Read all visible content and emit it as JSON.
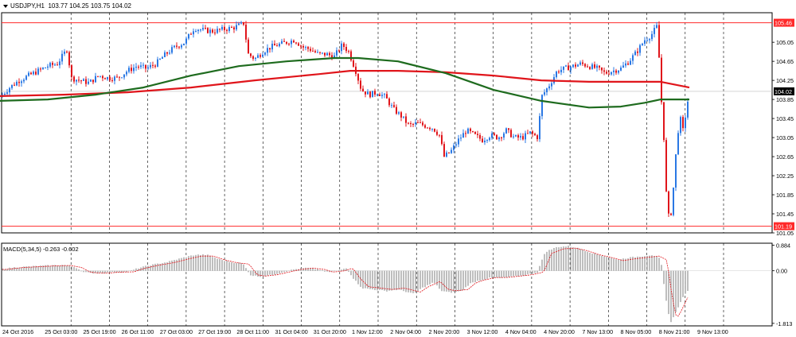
{
  "header": {
    "symbol": "USDJPY,H1",
    "ohlc": "103.77 104.25 103.75 104.02"
  },
  "macd_header": {
    "label": "MACD(5,34,5)",
    "values": "-0.263 -0.602"
  },
  "colors": {
    "bull": "#2a78e4",
    "bear": "#e0151b",
    "ma_red": "#e0151b",
    "ma_green": "#1e6b1e",
    "hline": "#ff2a2a",
    "grid": "#000000",
    "hist": "#9a9a9a",
    "signal": "#e0151b"
  },
  "chart_data": {
    "type": "candlestick",
    "symbol": "USDJPY",
    "timeframe": "H1",
    "ylim": [
      101.05,
      105.67
    ],
    "price_ticks": [
      "105.46",
      "105.05",
      "104.65",
      "104.25",
      "104.02",
      "103.85",
      "103.45",
      "103.05",
      "102.65",
      "102.25",
      "101.85",
      "101.45",
      "101.19",
      "101.05"
    ],
    "highlighted_levels": {
      "upper": 105.46,
      "lower": 101.19,
      "current": 104.02
    },
    "x_labels": [
      "24 Oct 2016",
      "25 Oct 03:00",
      "25 Oct 19:00",
      "26 Oct 11:00",
      "27 Oct 03:00",
      "27 Oct 19:00",
      "28 Oct 11:00",
      "31 Oct 04:00",
      "31 Oct 20:00",
      "1 Nov 12:00",
      "2 Nov 04:00",
      "2 Nov 20:00",
      "3 Nov 12:00",
      "4 Nov 04:00",
      "4 Nov 20:00",
      "7 Nov 13:00",
      "8 Nov 05:00",
      "8 Nov 21:00",
      "9 Nov 13:00"
    ],
    "close_path": [
      [
        0,
        103.9
      ],
      [
        12,
        104.1
      ],
      [
        24,
        104.25
      ],
      [
        36,
        104.35
      ],
      [
        48,
        104.45
      ],
      [
        60,
        104.55
      ],
      [
        72,
        104.6
      ],
      [
        84,
        104.9
      ],
      [
        90,
        104.3
      ],
      [
        100,
        104.25
      ],
      [
        112,
        104.2
      ],
      [
        124,
        104.35
      ],
      [
        136,
        104.3
      ],
      [
        148,
        104.3
      ],
      [
        160,
        104.45
      ],
      [
        172,
        104.55
      ],
      [
        184,
        104.5
      ],
      [
        196,
        104.6
      ],
      [
        208,
        104.8
      ],
      [
        220,
        104.95
      ],
      [
        232,
        105.05
      ],
      [
        244,
        105.35
      ],
      [
        256,
        105.3
      ],
      [
        268,
        105.28
      ],
      [
        280,
        105.32
      ],
      [
        292,
        105.35
      ],
      [
        300,
        105.4
      ],
      [
        306,
        105.45
      ],
      [
        312,
        104.8
      ],
      [
        320,
        104.7
      ],
      [
        330,
        104.85
      ],
      [
        340,
        104.95
      ],
      [
        350,
        105.0
      ],
      [
        360,
        105.05
      ],
      [
        370,
        105.1
      ],
      [
        380,
        104.95
      ],
      [
        390,
        104.9
      ],
      [
        400,
        104.8
      ],
      [
        410,
        104.8
      ],
      [
        420,
        104.75
      ],
      [
        430,
        105.0
      ],
      [
        438,
        104.85
      ],
      [
        446,
        104.5
      ],
      [
        454,
        104.05
      ],
      [
        464,
        103.95
      ],
      [
        474,
        104.0
      ],
      [
        484,
        103.9
      ],
      [
        494,
        103.65
      ],
      [
        504,
        103.5
      ],
      [
        514,
        103.3
      ],
      [
        524,
        103.35
      ],
      [
        534,
        103.3
      ],
      [
        544,
        103.25
      ],
      [
        552,
        103.1
      ],
      [
        558,
        102.65
      ],
      [
        566,
        102.75
      ],
      [
        576,
        103.0
      ],
      [
        586,
        103.2
      ],
      [
        596,
        103.1
      ],
      [
        606,
        103.0
      ],
      [
        616,
        103.1
      ],
      [
        626,
        103.05
      ],
      [
        636,
        103.2
      ],
      [
        646,
        103.05
      ],
      [
        656,
        103.05
      ],
      [
        666,
        103.15
      ],
      [
        676,
        103.05
      ],
      [
        680,
        103.9
      ],
      [
        690,
        104.15
      ],
      [
        700,
        104.45
      ],
      [
        710,
        104.5
      ],
      [
        720,
        104.55
      ],
      [
        730,
        104.6
      ],
      [
        740,
        104.55
      ],
      [
        750,
        104.5
      ],
      [
        760,
        104.4
      ],
      [
        770,
        104.45
      ],
      [
        780,
        104.5
      ],
      [
        790,
        104.65
      ],
      [
        800,
        104.85
      ],
      [
        810,
        105.1
      ],
      [
        818,
        105.2
      ],
      [
        826,
        105.4
      ],
      [
        830,
        104.05
      ],
      [
        834,
        103.05
      ],
      [
        838,
        101.5
      ],
      [
        842,
        101.3
      ],
      [
        846,
        102.0
      ],
      [
        850,
        102.9
      ],
      [
        854,
        103.5
      ],
      [
        858,
        103.2
      ],
      [
        862,
        103.6
      ],
      [
        866,
        104.02
      ]
    ],
    "ma_red": [
      [
        0,
        103.92
      ],
      [
        80,
        103.95
      ],
      [
        160,
        104.0
      ],
      [
        240,
        104.1
      ],
      [
        320,
        104.25
      ],
      [
        400,
        104.38
      ],
      [
        440,
        104.45
      ],
      [
        500,
        104.45
      ],
      [
        560,
        104.42
      ],
      [
        620,
        104.35
      ],
      [
        680,
        104.25
      ],
      [
        740,
        104.22
      ],
      [
        800,
        104.22
      ],
      [
        830,
        104.22
      ],
      [
        866,
        104.1
      ]
    ],
    "ma_green": [
      [
        0,
        103.82
      ],
      [
        60,
        103.85
      ],
      [
        120,
        103.95
      ],
      [
        180,
        104.1
      ],
      [
        240,
        104.35
      ],
      [
        300,
        104.55
      ],
      [
        360,
        104.65
      ],
      [
        420,
        104.72
      ],
      [
        450,
        104.72
      ],
      [
        500,
        104.65
      ],
      [
        560,
        104.4
      ],
      [
        620,
        104.05
      ],
      [
        680,
        103.82
      ],
      [
        740,
        103.68
      ],
      [
        780,
        103.7
      ],
      [
        810,
        103.78
      ],
      [
        830,
        103.85
      ],
      [
        866,
        103.85
      ]
    ]
  },
  "macd_data": {
    "type": "histogram",
    "ylim": [
      -1.9,
      0.95
    ],
    "ticks": [
      "0.884",
      "0.00",
      "-1.813"
    ],
    "histogram_path": [
      [
        0,
        0.05
      ],
      [
        20,
        0.12
      ],
      [
        40,
        0.15
      ],
      [
        60,
        0.18
      ],
      [
        80,
        0.2
      ],
      [
        95,
        0.12
      ],
      [
        105,
        -0.05
      ],
      [
        115,
        -0.08
      ],
      [
        130,
        -0.08
      ],
      [
        145,
        -0.05
      ],
      [
        160,
        -0.04
      ],
      [
        175,
        0.1
      ],
      [
        190,
        0.2
      ],
      [
        210,
        0.3
      ],
      [
        230,
        0.45
      ],
      [
        245,
        0.55
      ],
      [
        260,
        0.55
      ],
      [
        275,
        0.4
      ],
      [
        290,
        0.3
      ],
      [
        305,
        0.25
      ],
      [
        315,
        -0.15
      ],
      [
        325,
        -0.2
      ],
      [
        340,
        -0.15
      ],
      [
        355,
        -0.05
      ],
      [
        370,
        0.05
      ],
      [
        385,
        0.1
      ],
      [
        400,
        0.05
      ],
      [
        410,
        -0.05
      ],
      [
        425,
        0.0
      ],
      [
        435,
        0.1
      ],
      [
        445,
        -0.3
      ],
      [
        455,
        -0.6
      ],
      [
        470,
        -0.65
      ],
      [
        485,
        -0.7
      ],
      [
        500,
        -0.65
      ],
      [
        510,
        -0.72
      ],
      [
        520,
        -0.8
      ],
      [
        530,
        -0.6
      ],
      [
        545,
        -0.4
      ],
      [
        555,
        -0.7
      ],
      [
        565,
        -0.75
      ],
      [
        580,
        -0.7
      ],
      [
        590,
        -0.45
      ],
      [
        600,
        -0.35
      ],
      [
        615,
        -0.25
      ],
      [
        630,
        -0.25
      ],
      [
        645,
        -0.2
      ],
      [
        660,
        -0.15
      ],
      [
        675,
        -0.05
      ],
      [
        685,
        0.65
      ],
      [
        700,
        0.82
      ],
      [
        715,
        0.85
      ],
      [
        730,
        0.75
      ],
      [
        745,
        0.6
      ],
      [
        760,
        0.5
      ],
      [
        775,
        0.38
      ],
      [
        790,
        0.45
      ],
      [
        805,
        0.5
      ],
      [
        820,
        0.55
      ],
      [
        830,
        0.4
      ],
      [
        836,
        -0.9
      ],
      [
        842,
        -1.8
      ],
      [
        848,
        -1.5
      ],
      [
        856,
        -1.0
      ],
      [
        866,
        -0.6
      ]
    ]
  }
}
